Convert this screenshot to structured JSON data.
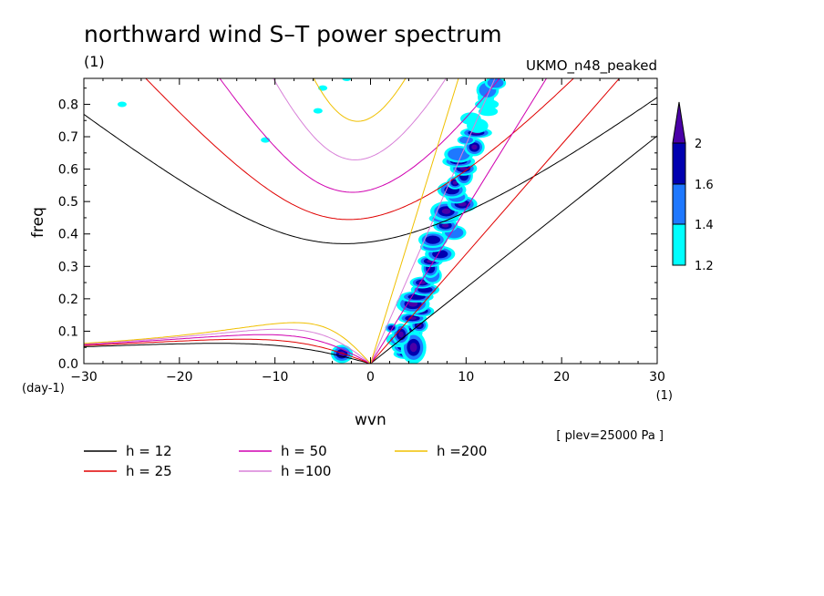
{
  "header": {
    "title": "northward wind S–T power spectrum",
    "unit_left": "(1)",
    "model_name": "UKMO_n48_peaked"
  },
  "footer": {
    "plev_note": "[ plev=25000 Pa ]"
  },
  "colors": {
    "black": "#000000",
    "red": "#e00000",
    "magenta": "#d000b0",
    "plum": "#d880d8",
    "gold": "#f0c000",
    "cyan": "#00ffff",
    "lightblue": "#1e78ff",
    "darkblue": "#0000b0",
    "violet": "#4a00a8"
  },
  "chart_data": {
    "type": "heatmap",
    "title": "northward wind S–T power spectrum",
    "xlabel": "wvn",
    "ylabel": "freq",
    "x_unit": "(1)",
    "y_unit": "(day-1)",
    "xlim": [
      -30,
      30
    ],
    "ylim": [
      0,
      0.88
    ],
    "x_ticks": [
      -30,
      -20,
      -10,
      0,
      10,
      20,
      30
    ],
    "x_tick_labels": [
      "−30",
      "−20",
      "−10",
      "0",
      "10",
      "20",
      "30"
    ],
    "y_ticks": [
      0.0,
      0.1,
      0.2,
      0.3,
      0.4,
      0.5,
      0.6,
      0.7,
      0.8
    ],
    "y_tick_labels": [
      "0.0",
      "0.1",
      "0.2",
      "0.3",
      "0.4",
      "0.5",
      "0.6",
      "0.7",
      "0.8"
    ],
    "colorbar": {
      "levels": [
        1.2,
        1.4,
        1.6,
        2
      ],
      "labels": [
        "1.2",
        "1.4",
        "1.6",
        "2"
      ],
      "colors": [
        "#00ffff",
        "#1e78ff",
        "#0000b0",
        "#4a00a8"
      ]
    },
    "dispersion_curves": [
      {
        "h": 12,
        "label": "h = 12",
        "color": "#000000"
      },
      {
        "h": 25,
        "label": "h = 25",
        "color": "#e00000"
      },
      {
        "h": 50,
        "label": "h = 50",
        "color": "#d000b0"
      },
      {
        "h": 100,
        "label": "h =100",
        "color": "#d880d8"
      },
      {
        "h": 200,
        "label": "h =200",
        "color": "#f0c000"
      }
    ],
    "legend_position": "bottom"
  }
}
